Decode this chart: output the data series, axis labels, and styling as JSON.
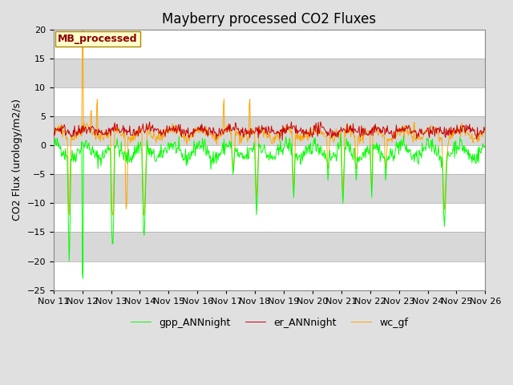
{
  "title": "Mayberry processed CO2 Fluxes",
  "ylabel": "CO2 Flux (urology/m2/s)",
  "ylim": [
    -25,
    20
  ],
  "yticks": [
    -25,
    -20,
    -15,
    -10,
    -5,
    0,
    5,
    10,
    15,
    20
  ],
  "legend_label": "MB_processed",
  "series_labels": [
    "gpp_ANNnight",
    "er_ANNnight",
    "wc_gf"
  ],
  "series_colors": [
    "#00ff00",
    "#cc0000",
    "#ffa500"
  ],
  "fig_bg_color": "#e0e0e0",
  "band_colors": [
    "#ffffff",
    "#d8d8d8"
  ],
  "title_fontsize": 12,
  "label_fontsize": 9,
  "tick_fontsize": 8,
  "legend_box_facecolor": "#ffffcc",
  "legend_box_edgecolor": "#aa8800",
  "legend_text_color": "#8b0000",
  "start_day": 11,
  "end_day": 26,
  "seed": 42
}
